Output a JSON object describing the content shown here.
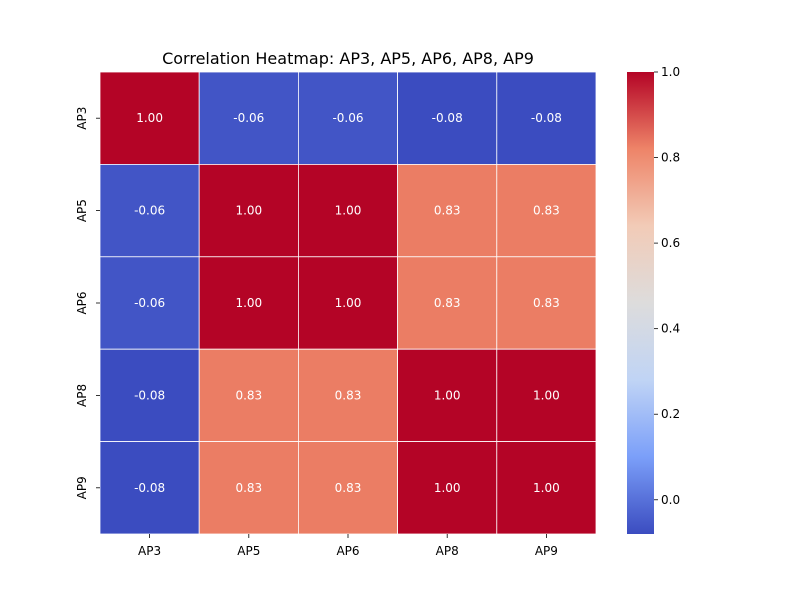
{
  "chart_data": {
    "type": "heatmap",
    "title": "Correlation Heatmap: AP3, AP5, AP6, AP8, AP9",
    "x_categories": [
      "AP3",
      "AP5",
      "AP6",
      "AP8",
      "AP9"
    ],
    "y_categories": [
      "AP3",
      "AP5",
      "AP6",
      "AP8",
      "AP9"
    ],
    "values": [
      [
        1.0,
        -0.06,
        -0.06,
        -0.08,
        -0.08
      ],
      [
        -0.06,
        1.0,
        1.0,
        0.83,
        0.83
      ],
      [
        -0.06,
        1.0,
        1.0,
        0.83,
        0.83
      ],
      [
        -0.08,
        0.83,
        0.83,
        1.0,
        1.0
      ],
      [
        -0.08,
        0.83,
        0.83,
        1.0,
        1.0
      ]
    ],
    "value_labels": [
      [
        "1.00",
        "-0.06",
        "-0.06",
        "-0.08",
        "-0.08"
      ],
      [
        "-0.06",
        "1.00",
        "1.00",
        "0.83",
        "0.83"
      ],
      [
        "-0.06",
        "1.00",
        "1.00",
        "0.83",
        "0.83"
      ],
      [
        "-0.08",
        "0.83",
        "0.83",
        "1.00",
        "1.00"
      ],
      [
        "-0.08",
        "0.83",
        "0.83",
        "1.00",
        "1.00"
      ]
    ],
    "colormap": "coolwarm",
    "vmin": -0.08,
    "vmax": 1.0,
    "colorbar_ticks": [
      "0.0",
      "0.2",
      "0.4",
      "0.6",
      "0.8",
      "1.0"
    ],
    "colorbar_tick_values": [
      0.0,
      0.2,
      0.4,
      0.6,
      0.8,
      1.0
    ],
    "colormap_stops": [
      "#3b4cc0",
      "#7b9ff9",
      "#c0d4f5",
      "#dddcdc",
      "#f2cbb7",
      "#ee8468",
      "#b40426"
    ],
    "grid_color": "#ffffff"
  }
}
